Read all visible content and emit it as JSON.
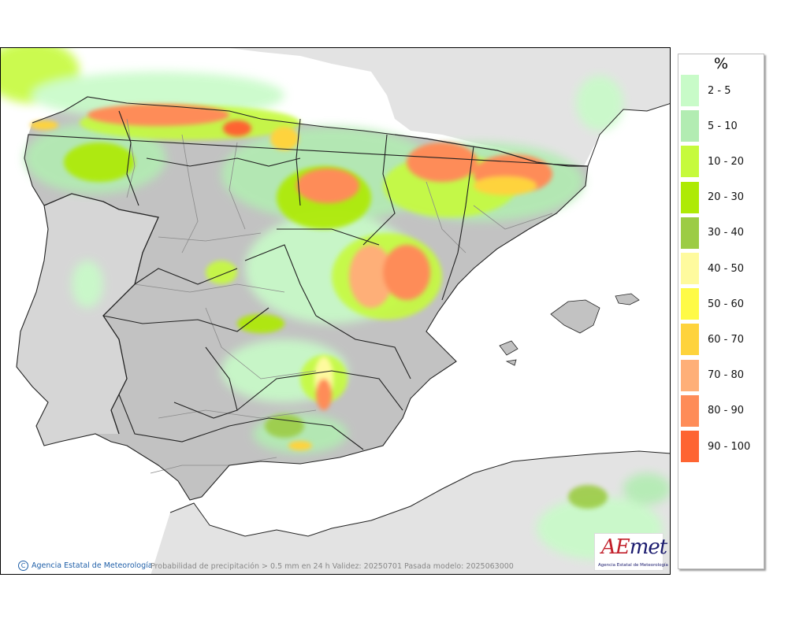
{
  "legend": {
    "title": "%",
    "items": [
      {
        "label": "2 - 5",
        "color": "#c8fbc8"
      },
      {
        "label": "5 - 10",
        "color": "#b2ecb2"
      },
      {
        "label": "10 - 20",
        "color": "#c6fa3c"
      },
      {
        "label": "20 - 30",
        "color": "#aeea05"
      },
      {
        "label": "30 - 40",
        "color": "#9ccc45"
      },
      {
        "label": "40 - 50",
        "color": "#fefa9e"
      },
      {
        "label": "50 - 60",
        "color": "#fefa46"
      },
      {
        "label": "60 - 70",
        "color": "#fed33c"
      },
      {
        "label": "70 - 80",
        "color": "#feaf78"
      },
      {
        "label": "80 - 90",
        "color": "#fe8c58"
      },
      {
        "label": "90 - 100",
        "color": "#fe6432"
      }
    ]
  },
  "footer": {
    "copyright_symbol": "C",
    "agency": "Agencia Estatal de Meteorología",
    "caption": "Probabilidad de precipitación > 0.5 mm en 24 h Validez: 20250701 Pasada modelo: 2025063000"
  },
  "logo": {
    "name_prefix": "AE",
    "name_suffix": "met",
    "subtitle": "Agencia Estatal de Meteorología"
  },
  "colors": {
    "land": "#c2c2c2",
    "land_other": "#e3e3e3",
    "sea": "#ffffff",
    "borders": "#222222",
    "provinces": "#8a8a8a"
  }
}
